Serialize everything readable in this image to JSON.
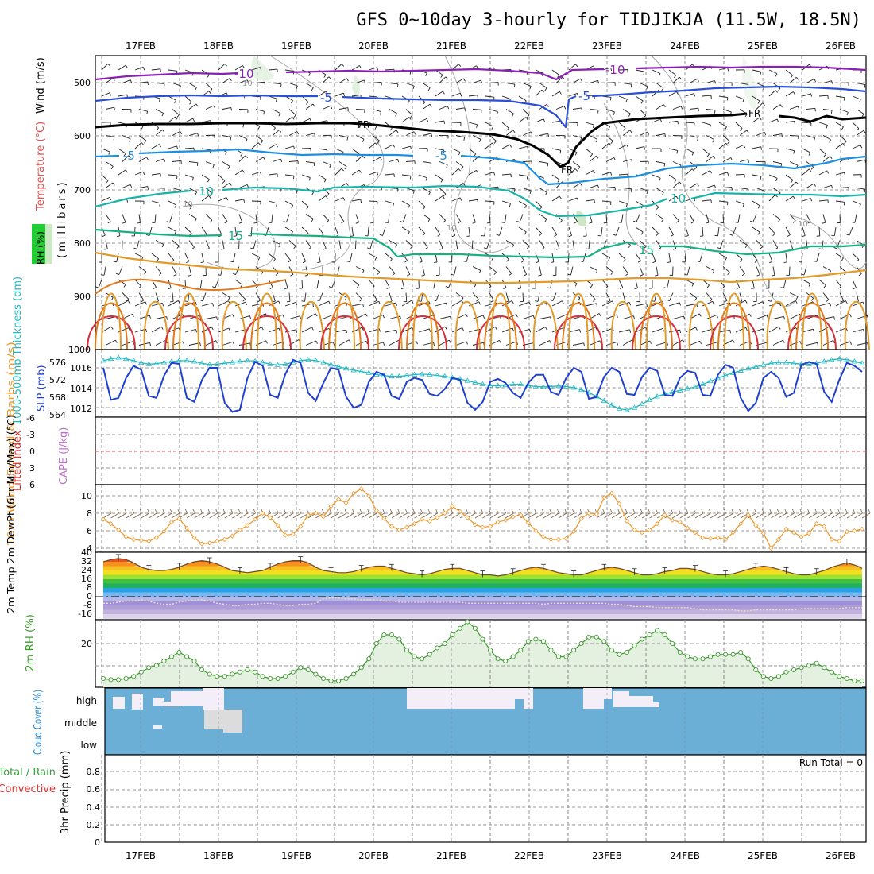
{
  "title": "GFS 0~10day 3-hourly for TIDJIKJA (11.5W, 18.5N)",
  "run_total": "Run Total = 0",
  "date_labels": [
    "17FEB",
    "18FEB",
    "19FEB",
    "20FEB",
    "21FEB",
    "22FEB",
    "23FEB",
    "24FEB",
    "25FEB",
    "26FEB"
  ],
  "colors": {
    "grid": "#9a9a9a",
    "purple": "#8a1fb4",
    "blue": "#2a4fd4",
    "lightblue": "#1e8fe0",
    "teal": "#1ab3a8",
    "green": "#18b082",
    "orange": "#e29a2a",
    "darkorange": "#e07a1a",
    "red": "#d8303a",
    "slp": "#1f3fd0",
    "thick": "#26b8c0",
    "wind": "#f09a30",
    "rh": "#3a9a2a",
    "cloud_bg": "#6baed6",
    "cloud_white": "#f4eef8",
    "cloud_gray": "#dcdcdc"
  },
  "chart_data": [
    {
      "id": "upper_air",
      "type": "contour",
      "ylabel_rh": "RH (%)",
      "ylabel_temp": "Temperature (°C)",
      "ylabel_wind": "Wind (m/s)",
      "ylabel_p": "(millibars)",
      "yticks": [
        "500",
        "600",
        "700",
        "800",
        "900",
        "1000"
      ],
      "contour_labels": [
        "-10",
        "-10",
        "-5",
        "-5",
        "-5",
        "-5",
        "FR",
        "FR",
        "FR",
        "10",
        "10",
        "15",
        "15",
        "10",
        "10",
        "10",
        "10"
      ]
    },
    {
      "id": "slp_thickness",
      "type": "line",
      "ylabel_thick": "1000-500mb Thickness (dm)",
      "ylabel_slp": "SLP (mb)",
      "yticks_left": [
        "576",
        "572",
        "568",
        "564"
      ],
      "yticks_right": [
        "1016",
        "1014",
        "1012"
      ],
      "series": [
        {
          "name": "SLP (mb)",
          "values": [
            1016.0,
            1012.8,
            1013.0,
            1015.0,
            1016.2,
            1015.8,
            1013.2,
            1013.0,
            1015.2,
            1016.5,
            1016.4,
            1013.0,
            1012.6,
            1014.8,
            1016.0,
            1016.0,
            1012.5,
            1011.6,
            1011.8,
            1015.0,
            1016.6,
            1016.2,
            1013.3,
            1013.0,
            1015.4,
            1016.8,
            1016.5,
            1013.5,
            1012.7,
            1014.5,
            1016.0,
            1015.8,
            1013.1,
            1012.0,
            1012.3,
            1014.6,
            1015.6,
            1015.3,
            1013.2,
            1012.9,
            1014.6,
            1015.0,
            1014.8,
            1013.4,
            1013.2,
            1013.9,
            1015.0,
            1014.8,
            1012.5,
            1011.8,
            1012.6,
            1014.6,
            1014.9,
            1014.5,
            1013.5,
            1013.0,
            1014.5,
            1015.3,
            1015.3,
            1013.6,
            1013.3,
            1015.0,
            1016.0,
            1015.6,
            1012.9,
            1013.1,
            1015.1,
            1016.0,
            1015.6,
            1013.4,
            1013.3,
            1015.1,
            1016.0,
            1015.7,
            1013.3,
            1013.2,
            1015.0,
            1015.7,
            1015.5,
            1013.3,
            1013.2,
            1015.3,
            1016.3,
            1016.0,
            1013.0,
            1011.7,
            1012.5,
            1015.0,
            1015.6,
            1015.0,
            1013.1,
            1013.5,
            1016.3,
            1016.6,
            1016.4,
            1013.6,
            1012.6,
            1014.8,
            1016.5,
            1016.2,
            1015.6
          ]
        },
        {
          "name": "Thickness (dm)",
          "values": [
            576.2,
            576.6,
            576.9,
            576.6,
            576.2,
            575.7,
            575.4,
            575.5,
            575.8,
            576.0,
            576.2,
            576.2,
            576.0,
            575.6,
            575.3,
            575.4,
            575.6,
            575.8,
            576.0,
            576.2,
            576.1,
            575.8,
            575.4,
            575.2,
            575.4,
            575.8,
            576.2,
            576.4,
            576.2,
            575.8,
            575.3,
            574.8,
            574.4,
            574.0,
            573.7,
            573.4,
            573.0,
            572.8,
            572.6,
            572.6,
            572.8,
            573.0,
            573.1,
            573.0,
            572.8,
            572.6,
            572.3,
            572.0,
            571.6,
            571.2,
            570.8,
            570.5,
            570.5,
            570.6,
            570.8,
            570.8,
            570.5,
            570.3,
            570.2,
            570.3,
            570.4,
            570.3,
            570.0,
            569.5,
            568.9,
            568.0,
            567.0,
            566.0,
            565.2,
            564.9,
            565.4,
            566.3,
            567.2,
            568.0,
            568.6,
            569.0,
            569.4,
            569.8,
            570.2,
            570.8,
            571.5,
            572.2,
            572.8,
            573.4,
            573.9,
            574.4,
            574.8,
            575.2,
            575.6,
            575.8,
            575.8,
            575.6,
            575.4,
            575.4,
            575.6,
            576.0,
            576.4,
            576.6,
            576.4,
            576.0,
            575.6
          ]
        }
      ]
    },
    {
      "id": "stability",
      "type": "line",
      "ylabel_li": "Lifted Index",
      "ylabel_cape": "CAPE (J/kg)",
      "yticks": [
        "-6",
        "-3",
        "0",
        "3",
        "6"
      ],
      "series": []
    },
    {
      "id": "wind10m",
      "type": "line",
      "ylabel": "10m Wind Speed & Barbs (m/s)",
      "yticks": [
        "10",
        "8",
        "6",
        "4"
      ],
      "series": [
        {
          "name": "10m Wind Speed (m/s)",
          "values": [
            7.3,
            6.8,
            6.1,
            5.3,
            5.0,
            4.9,
            4.8,
            5.2,
            5.9,
            7.0,
            7.4,
            6.3,
            5.2,
            4.5,
            4.6,
            4.8,
            5.0,
            5.4,
            6.1,
            6.6,
            7.3,
            8.0,
            7.5,
            6.6,
            5.5,
            5.6,
            6.5,
            7.8,
            8.0,
            7.6,
            8.8,
            9.6,
            9.2,
            10.3,
            10.8,
            10.0,
            8.3,
            7.4,
            6.5,
            6.1,
            6.4,
            6.8,
            7.3,
            7.1,
            7.5,
            8.0,
            8.8,
            8.2,
            7.5,
            6.7,
            6.4,
            6.5,
            7.0,
            7.2,
            7.6,
            7.8,
            6.9,
            6.0,
            5.3,
            5.0,
            5.0,
            5.1,
            5.9,
            7.4,
            8.0,
            7.9,
            9.8,
            10.3,
            9.1,
            7.1,
            6.1,
            5.8,
            6.1,
            6.8,
            7.8,
            7.2,
            7.0,
            6.3,
            5.8,
            5.2,
            5.1,
            5.2,
            5.0,
            5.8,
            6.8,
            7.8,
            6.6,
            5.7,
            4.0,
            5.0,
            6.2,
            5.8,
            5.3,
            5.7,
            6.8,
            6.5,
            5.0,
            4.8,
            5.9,
            6.0,
            6.2
          ]
        }
      ]
    },
    {
      "id": "temp2m",
      "type": "area",
      "ylabel": "2m Temp 2m DewPt (6hr Min/Max) (°C)",
      "yticks": [
        "40",
        "32",
        "24",
        "16",
        "8",
        "0",
        "-8",
        "-16"
      ],
      "series": [
        {
          "name": "2m Temp (°C)",
          "values": [
            32,
            34,
            35,
            34,
            31,
            27,
            25,
            24,
            24,
            25,
            27,
            30,
            32,
            33,
            32,
            30,
            27,
            24,
            23,
            22,
            23,
            24,
            27,
            30,
            32,
            33,
            33,
            31,
            27,
            24,
            23,
            22,
            22,
            23,
            25,
            27,
            28,
            28,
            26,
            24,
            22,
            21,
            20,
            21,
            23,
            25,
            26,
            26,
            24,
            22,
            20,
            20,
            19,
            20,
            22,
            24,
            26,
            27,
            26,
            24,
            22,
            21,
            20,
            20,
            22,
            24,
            26,
            27,
            26,
            24,
            22,
            20,
            20,
            21,
            23,
            24,
            26,
            26,
            25,
            23,
            21,
            20,
            20,
            21,
            23,
            25,
            27,
            28,
            27,
            25,
            23,
            21,
            20,
            20,
            22,
            24,
            27,
            29,
            31,
            29,
            26
          ]
        },
        {
          "name": "2m DewPt (°C)",
          "values": [
            -6,
            -6,
            -5,
            -4,
            -4,
            -3,
            -4,
            -6,
            -7,
            -7,
            -5,
            -4,
            -3,
            -3,
            -4,
            -6,
            -7,
            -8,
            -8,
            -7,
            -7,
            -6,
            -6,
            -7,
            -8,
            -8,
            -7,
            -7,
            -6,
            -2,
            -1,
            -1,
            -2,
            -2,
            -3,
            -3,
            -3,
            -4,
            -4,
            -5,
            -5,
            -5,
            -5,
            -5,
            -5,
            -5,
            -5,
            -5,
            -6,
            -6,
            -6,
            -6,
            -6,
            -6,
            -6,
            -6,
            -6,
            -6,
            -7,
            -6,
            -6,
            -6,
            -6,
            -6,
            -6,
            -6,
            -6,
            -7,
            -7,
            -8,
            -9,
            -9,
            -9,
            -10,
            -10,
            -10,
            -10,
            -10,
            -11,
            -12,
            -12,
            -12,
            -12,
            -12,
            -13,
            -13,
            -12,
            -12,
            -12,
            -12,
            -12,
            -12,
            -11,
            -11,
            -11,
            -11,
            -11,
            -11,
            -10,
            -10,
            -10
          ]
        }
      ]
    },
    {
      "id": "rh2m",
      "type": "area",
      "ylabel": "2m RH (%)",
      "yticks": [
        "20"
      ],
      "series": [
        {
          "name": "2m RH (%)",
          "values": [
            4,
            3.5,
            3.5,
            4,
            5,
            7,
            9,
            10,
            12,
            14,
            16,
            14,
            12,
            8,
            6,
            5,
            5,
            6,
            7,
            8,
            7,
            5,
            4,
            4,
            5,
            7,
            9,
            8,
            6,
            4,
            3,
            3,
            4,
            6,
            9,
            13,
            20,
            24,
            24,
            22,
            17,
            14,
            13,
            15,
            18,
            20,
            24,
            27,
            30,
            27,
            22,
            17,
            13,
            12,
            14,
            17,
            21,
            22,
            21,
            17,
            14,
            14,
            17,
            20,
            23,
            23,
            21,
            17,
            15,
            16,
            19,
            22,
            24,
            26,
            24,
            20,
            16,
            14,
            13,
            13,
            14,
            15,
            15,
            15,
            16,
            13,
            8,
            5,
            4,
            5,
            7,
            8,
            9,
            10,
            11,
            9,
            7,
            5,
            4,
            3,
            3
          ]
        }
      ]
    },
    {
      "id": "cloud",
      "type": "heatmap",
      "ylabel": "Cloud Cover (%)",
      "rows": [
        "high",
        "middle",
        "low"
      ]
    },
    {
      "id": "precip",
      "type": "bar",
      "ylabel": "3hr Precip (mm)",
      "ylabel_legend": "Total / Rain Convective",
      "yticks": [
        "0.8",
        "0.6",
        "0.4",
        "0.2",
        "0"
      ],
      "values": []
    }
  ]
}
